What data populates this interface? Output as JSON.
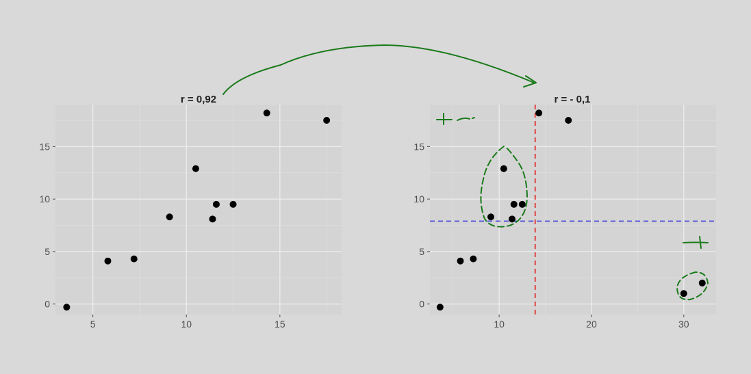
{
  "colors": {
    "background": "#d9d9d9",
    "panel": "#d4d4d4",
    "grid": "#ebebeb",
    "point": "#000000",
    "annotation": "#1a7a1a",
    "mean_x_line": "#e03030",
    "mean_y_line": "#3a3ad8"
  },
  "chart_data": [
    {
      "type": "scatter",
      "title": "r = 0,92",
      "xlabel": "",
      "ylabel": "",
      "xlim": [
        3,
        18.3
      ],
      "ylim": [
        -1,
        19
      ],
      "x_ticks": [
        5,
        10,
        15
      ],
      "y_ticks": [
        0,
        5,
        10,
        15
      ],
      "grid": true,
      "points": [
        {
          "x": 3.6,
          "y": -0.3
        },
        {
          "x": 5.8,
          "y": 4.1
        },
        {
          "x": 7.2,
          "y": 4.3
        },
        {
          "x": 9.1,
          "y": 8.3
        },
        {
          "x": 10.5,
          "y": 12.9
        },
        {
          "x": 11.4,
          "y": 8.1
        },
        {
          "x": 11.6,
          "y": 9.5
        },
        {
          "x": 12.5,
          "y": 9.5
        },
        {
          "x": 14.3,
          "y": 18.2
        },
        {
          "x": 17.5,
          "y": 17.5
        }
      ]
    },
    {
      "type": "scatter",
      "title": "r = - 0,1",
      "xlabel": "",
      "ylabel": "",
      "xlim": [
        2.5,
        33.5
      ],
      "ylim": [
        -1,
        19
      ],
      "x_ticks": [
        10,
        20,
        30
      ],
      "y_ticks": [
        0,
        5,
        10,
        15
      ],
      "grid": true,
      "mean_x": 13.9,
      "mean_y": 7.9,
      "points": [
        {
          "x": 3.6,
          "y": -0.3
        },
        {
          "x": 5.8,
          "y": 4.1
        },
        {
          "x": 7.2,
          "y": 4.3
        },
        {
          "x": 9.1,
          "y": 8.3
        },
        {
          "x": 10.5,
          "y": 12.9
        },
        {
          "x": 11.4,
          "y": 8.1
        },
        {
          "x": 11.6,
          "y": 9.5
        },
        {
          "x": 12.5,
          "y": 9.5
        },
        {
          "x": 14.3,
          "y": 18.2
        },
        {
          "x": 17.5,
          "y": 17.5
        },
        {
          "x": 30.0,
          "y": 1.0
        },
        {
          "x": 32.0,
          "y": 2.0
        }
      ]
    }
  ]
}
